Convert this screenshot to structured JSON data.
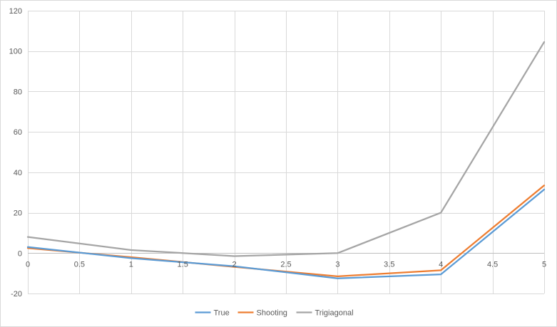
{
  "chart_data": {
    "type": "line",
    "title": "",
    "xlabel": "",
    "ylabel": "",
    "xlim": [
      0,
      5
    ],
    "ylim": [
      -20,
      120
    ],
    "x_ticks": [
      0,
      0.5,
      1,
      1.5,
      2,
      2.5,
      3,
      3.5,
      4,
      4.5,
      5
    ],
    "y_ticks": [
      -20,
      0,
      20,
      40,
      60,
      80,
      100,
      120
    ],
    "grid": true,
    "legend_position": "bottom",
    "series": [
      {
        "name": "True",
        "color": "#5b9bd5",
        "x": [
          0,
          1,
          2,
          3,
          4,
          5
        ],
        "y": [
          3,
          -2.5,
          -6.5,
          -12.5,
          -10.5,
          31.5
        ]
      },
      {
        "name": "Shooting",
        "color": "#ed7d31",
        "x": [
          0,
          1,
          2,
          3,
          4,
          5
        ],
        "y": [
          2.5,
          -2,
          -6.8,
          -11.5,
          -8.5,
          33.5
        ]
      },
      {
        "name": "Trigiagonal",
        "color": "#a5a5a5",
        "x": [
          0,
          1,
          2,
          3,
          4,
          5
        ],
        "y": [
          8,
          1.5,
          -1.5,
          0,
          20,
          104.5
        ]
      }
    ]
  }
}
